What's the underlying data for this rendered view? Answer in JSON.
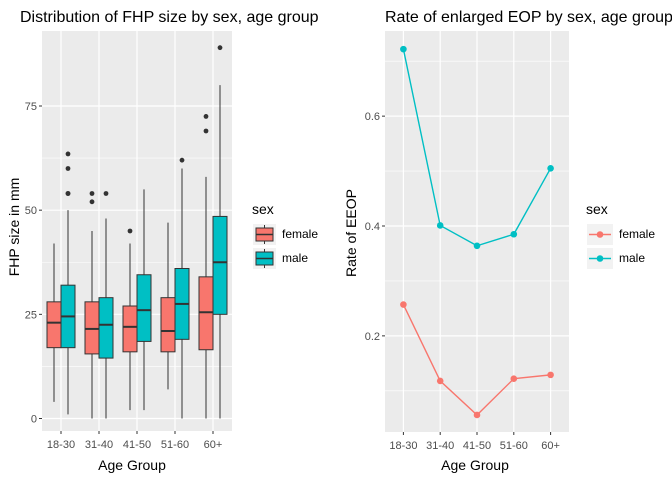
{
  "chart_data": [
    {
      "type": "box",
      "title": "Distribution of FHP size by sex, age group",
      "xlabel": "Age Group",
      "ylabel": "FHP size in mm",
      "categories": [
        "18-30",
        "31-40",
        "41-50",
        "51-60",
        "60+"
      ],
      "ylim": [
        -3,
        93
      ],
      "yticks": [
        0,
        25,
        50,
        75
      ],
      "grid": true,
      "legend": {
        "title": "sex",
        "placement": "right",
        "entries": [
          "female",
          "male"
        ]
      },
      "series": [
        {
          "name": "female",
          "color": "#F8766D",
          "boxes": [
            {
              "min": 4,
              "q1": 17,
              "median": 23,
              "q3": 28,
              "max": 42,
              "outliers": []
            },
            {
              "min": 0,
              "q1": 15.5,
              "median": 21.5,
              "q3": 28,
              "max": 45,
              "outliers": [
                52,
                54
              ]
            },
            {
              "min": 2,
              "q1": 16,
              "median": 22,
              "q3": 27,
              "max": 42,
              "outliers": [
                45
              ]
            },
            {
              "min": 7,
              "q1": 16,
              "median": 21,
              "q3": 29,
              "max": 47,
              "outliers": []
            },
            {
              "min": 0,
              "q1": 16.5,
              "median": 25.5,
              "q3": 34,
              "max": 58,
              "outliers": [
                69,
                72.5
              ]
            }
          ]
        },
        {
          "name": "male",
          "color": "#00BFC4",
          "boxes": [
            {
              "min": 1,
              "q1": 17,
              "median": 24.5,
              "q3": 32,
              "max": 50,
              "outliers": [
                54,
                54,
                60,
                63.5
              ]
            },
            {
              "min": 0,
              "q1": 14.5,
              "median": 22.5,
              "q3": 29,
              "max": 48,
              "outliers": [
                54
              ]
            },
            {
              "min": 2,
              "q1": 18.5,
              "median": 26,
              "q3": 34.5,
              "max": 55,
              "outliers": []
            },
            {
              "min": 0,
              "q1": 19,
              "median": 27.5,
              "q3": 36,
              "max": 60,
              "outliers": [
                62
              ]
            },
            {
              "min": 0,
              "q1": 25,
              "median": 37.5,
              "q3": 48.5,
              "max": 80,
              "outliers": [
                89
              ]
            }
          ]
        }
      ]
    },
    {
      "type": "line",
      "title": "Rate of enlarged EOP by sex, age group",
      "xlabel": "Age Group",
      "ylabel": "Rate of EEOP",
      "categories": [
        "18-30",
        "31-40",
        "41-50",
        "51-60",
        "60+"
      ],
      "ylim": [
        0.025,
        0.755
      ],
      "yticks": [
        0.2,
        0.4,
        0.6
      ],
      "grid": true,
      "legend": {
        "title": "sex",
        "placement": "right",
        "entries": [
          "female",
          "male"
        ]
      },
      "series": [
        {
          "name": "female",
          "color": "#F8766D",
          "values": [
            0.257,
            0.118,
            0.056,
            0.122,
            0.129
          ]
        },
        {
          "name": "male",
          "color": "#00BFC4",
          "values": [
            0.722,
            0.401,
            0.364,
            0.385,
            0.505
          ]
        }
      ]
    }
  ]
}
